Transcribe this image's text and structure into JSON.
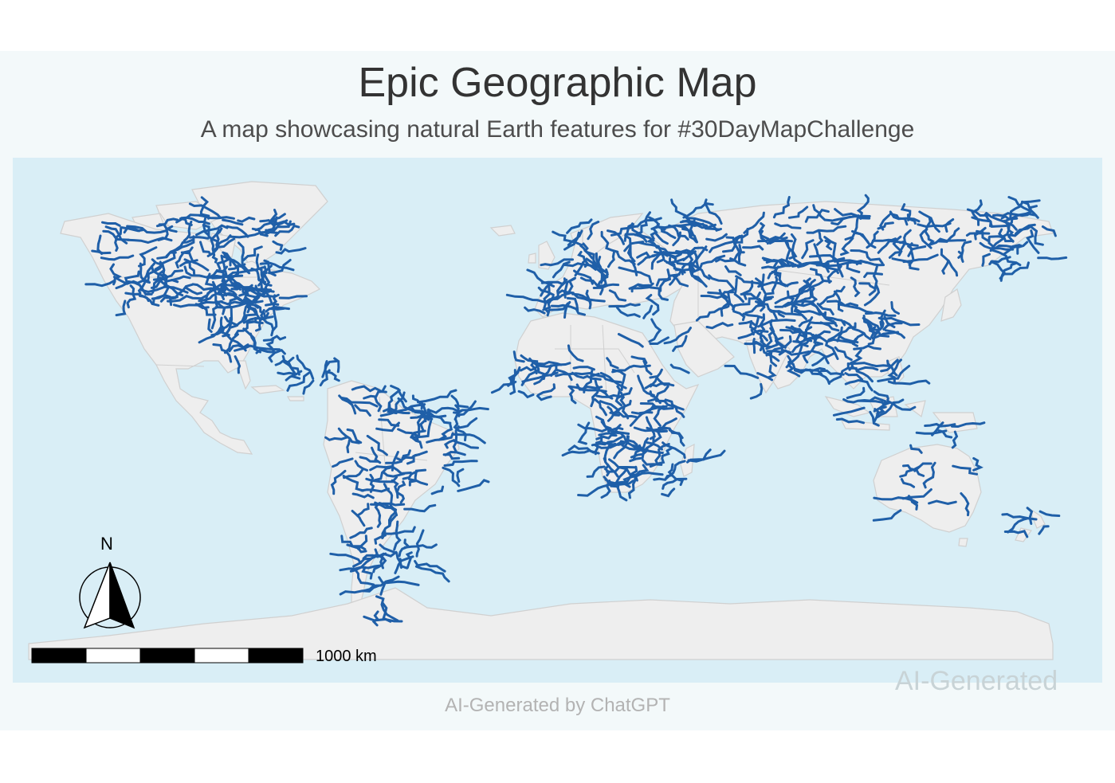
{
  "map": {
    "title": "Epic Geographic Map",
    "subtitle": "A map showcasing natural Earth features for #30DayMapChallenge",
    "caption": "AI-Generated by ChatGPT",
    "watermark": "AI-Generated",
    "north_arrow_label": "N",
    "scale_bar_label": "1000 km",
    "layers": [
      "countries",
      "rivers"
    ],
    "colors": {
      "ocean": "#d9eef6",
      "land": "#eeeeee",
      "borders": "#d0d0d0",
      "rivers": "#1f5fa8",
      "background": "#f3f9fa"
    }
  }
}
